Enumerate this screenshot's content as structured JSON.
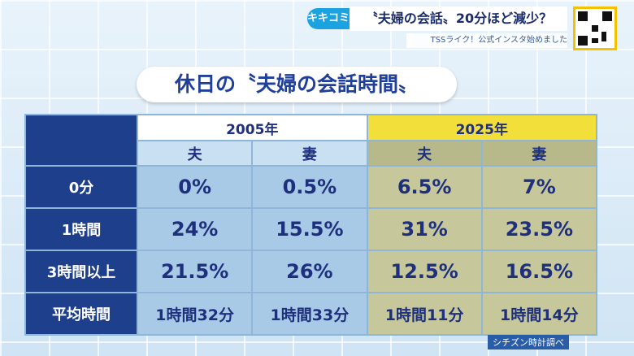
{
  "banner": {
    "tag": "キキコミ",
    "headline": "〝夫婦の会話〟20分ほど減少？",
    "ticker": "TSSライク！公式インスタ始めました"
  },
  "title": "休日の〝夫婦の会話時間〟",
  "table": {
    "years": [
      "2005年",
      "2025年"
    ],
    "subheaders": [
      "夫",
      "妻",
      "夫",
      "妻"
    ],
    "rows": [
      {
        "label": "0分",
        "cells": [
          "0%",
          "0.5%",
          "6.5%",
          "7%"
        ]
      },
      {
        "label": "1時間",
        "cells": [
          "24%",
          "15.5%",
          "31%",
          "23.5%"
        ]
      },
      {
        "label": "3時間以上",
        "cells": [
          "21.5%",
          "26%",
          "12.5%",
          "16.5%"
        ]
      },
      {
        "label": "平均時間",
        "cells": [
          "1時間32分",
          "1時間33分",
          "1時間11分",
          "1時間14分"
        ]
      }
    ]
  },
  "source": "シチズン時計調べ"
}
